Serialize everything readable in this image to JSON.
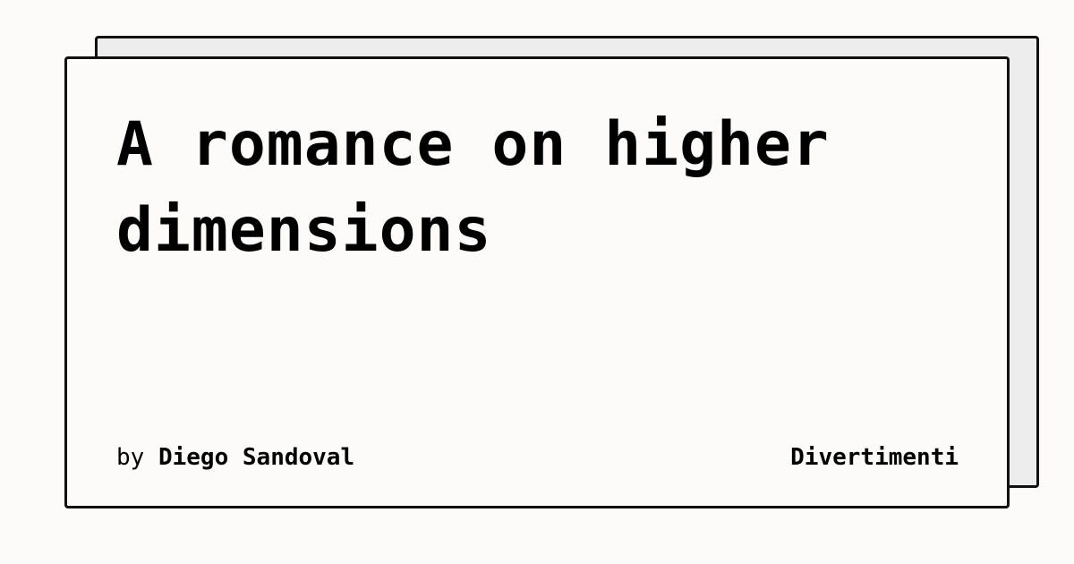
{
  "card": {
    "title": "A romance on higher dimensions",
    "byline_prefix": "by",
    "author": "Diego Sandoval",
    "publication": "Divertimenti"
  },
  "colors": {
    "background": "#fcfbf9",
    "back_card": "#ededed",
    "border": "#111111",
    "text": "#000000"
  }
}
